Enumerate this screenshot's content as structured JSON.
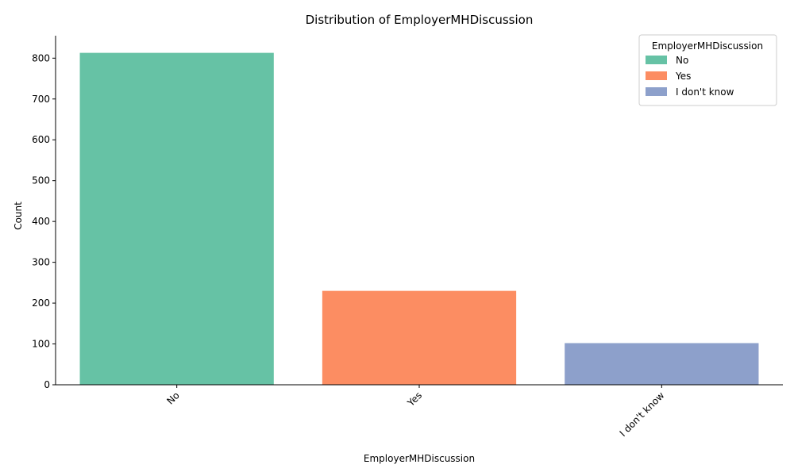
{
  "chart_data": {
    "type": "bar",
    "title": "Distribution of EmployerMHDiscussion",
    "xlabel": "EmployerMHDiscussion",
    "ylabel": "Count",
    "categories": [
      "No",
      "Yes",
      "I don't know"
    ],
    "values": [
      813,
      230,
      102
    ],
    "colors": [
      "#66c2a5",
      "#fc8d62",
      "#8da0cb"
    ],
    "ylim": [
      0,
      855
    ],
    "yticks": [
      0,
      100,
      200,
      300,
      400,
      500,
      600,
      700,
      800
    ],
    "xtick_rotation": 45,
    "grid": false,
    "legend": {
      "title": "EmployerMHDiscussion",
      "position": "top-right",
      "entries": [
        "No",
        "Yes",
        "I don't know"
      ]
    }
  }
}
